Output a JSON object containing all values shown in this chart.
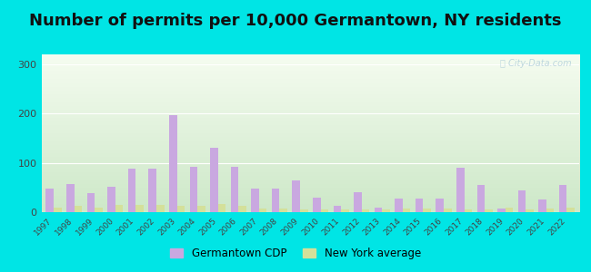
{
  "title": "Number of permits per 10,000 Germantown, NY residents",
  "years": [
    1997,
    1998,
    1999,
    2000,
    2001,
    2002,
    2003,
    2004,
    2005,
    2006,
    2007,
    2008,
    2009,
    2010,
    2011,
    2012,
    2013,
    2014,
    2015,
    2016,
    2017,
    2018,
    2019,
    2020,
    2021,
    2022
  ],
  "germantown": [
    47,
    57,
    38,
    52,
    88,
    88,
    196,
    92,
    130,
    92,
    47,
    47,
    65,
    30,
    12,
    40,
    10,
    28,
    28,
    28,
    90,
    55,
    8,
    45,
    25,
    55
  ],
  "ny_avg": [
    10,
    12,
    10,
    14,
    15,
    14,
    13,
    13,
    16,
    12,
    8,
    8,
    6,
    5,
    5,
    5,
    5,
    7,
    7,
    7,
    5,
    5,
    9,
    5,
    8,
    10
  ],
  "germantown_color": "#c9a8e0",
  "ny_avg_color": "#d4e09a",
  "background_outer": "#00e5e5",
  "ylim": [
    0,
    320
  ],
  "yticks": [
    0,
    100,
    200,
    300
  ],
  "title_fontsize": 13,
  "bar_width": 0.38,
  "legend_labels": [
    "Germantown CDP",
    "New York average"
  ]
}
